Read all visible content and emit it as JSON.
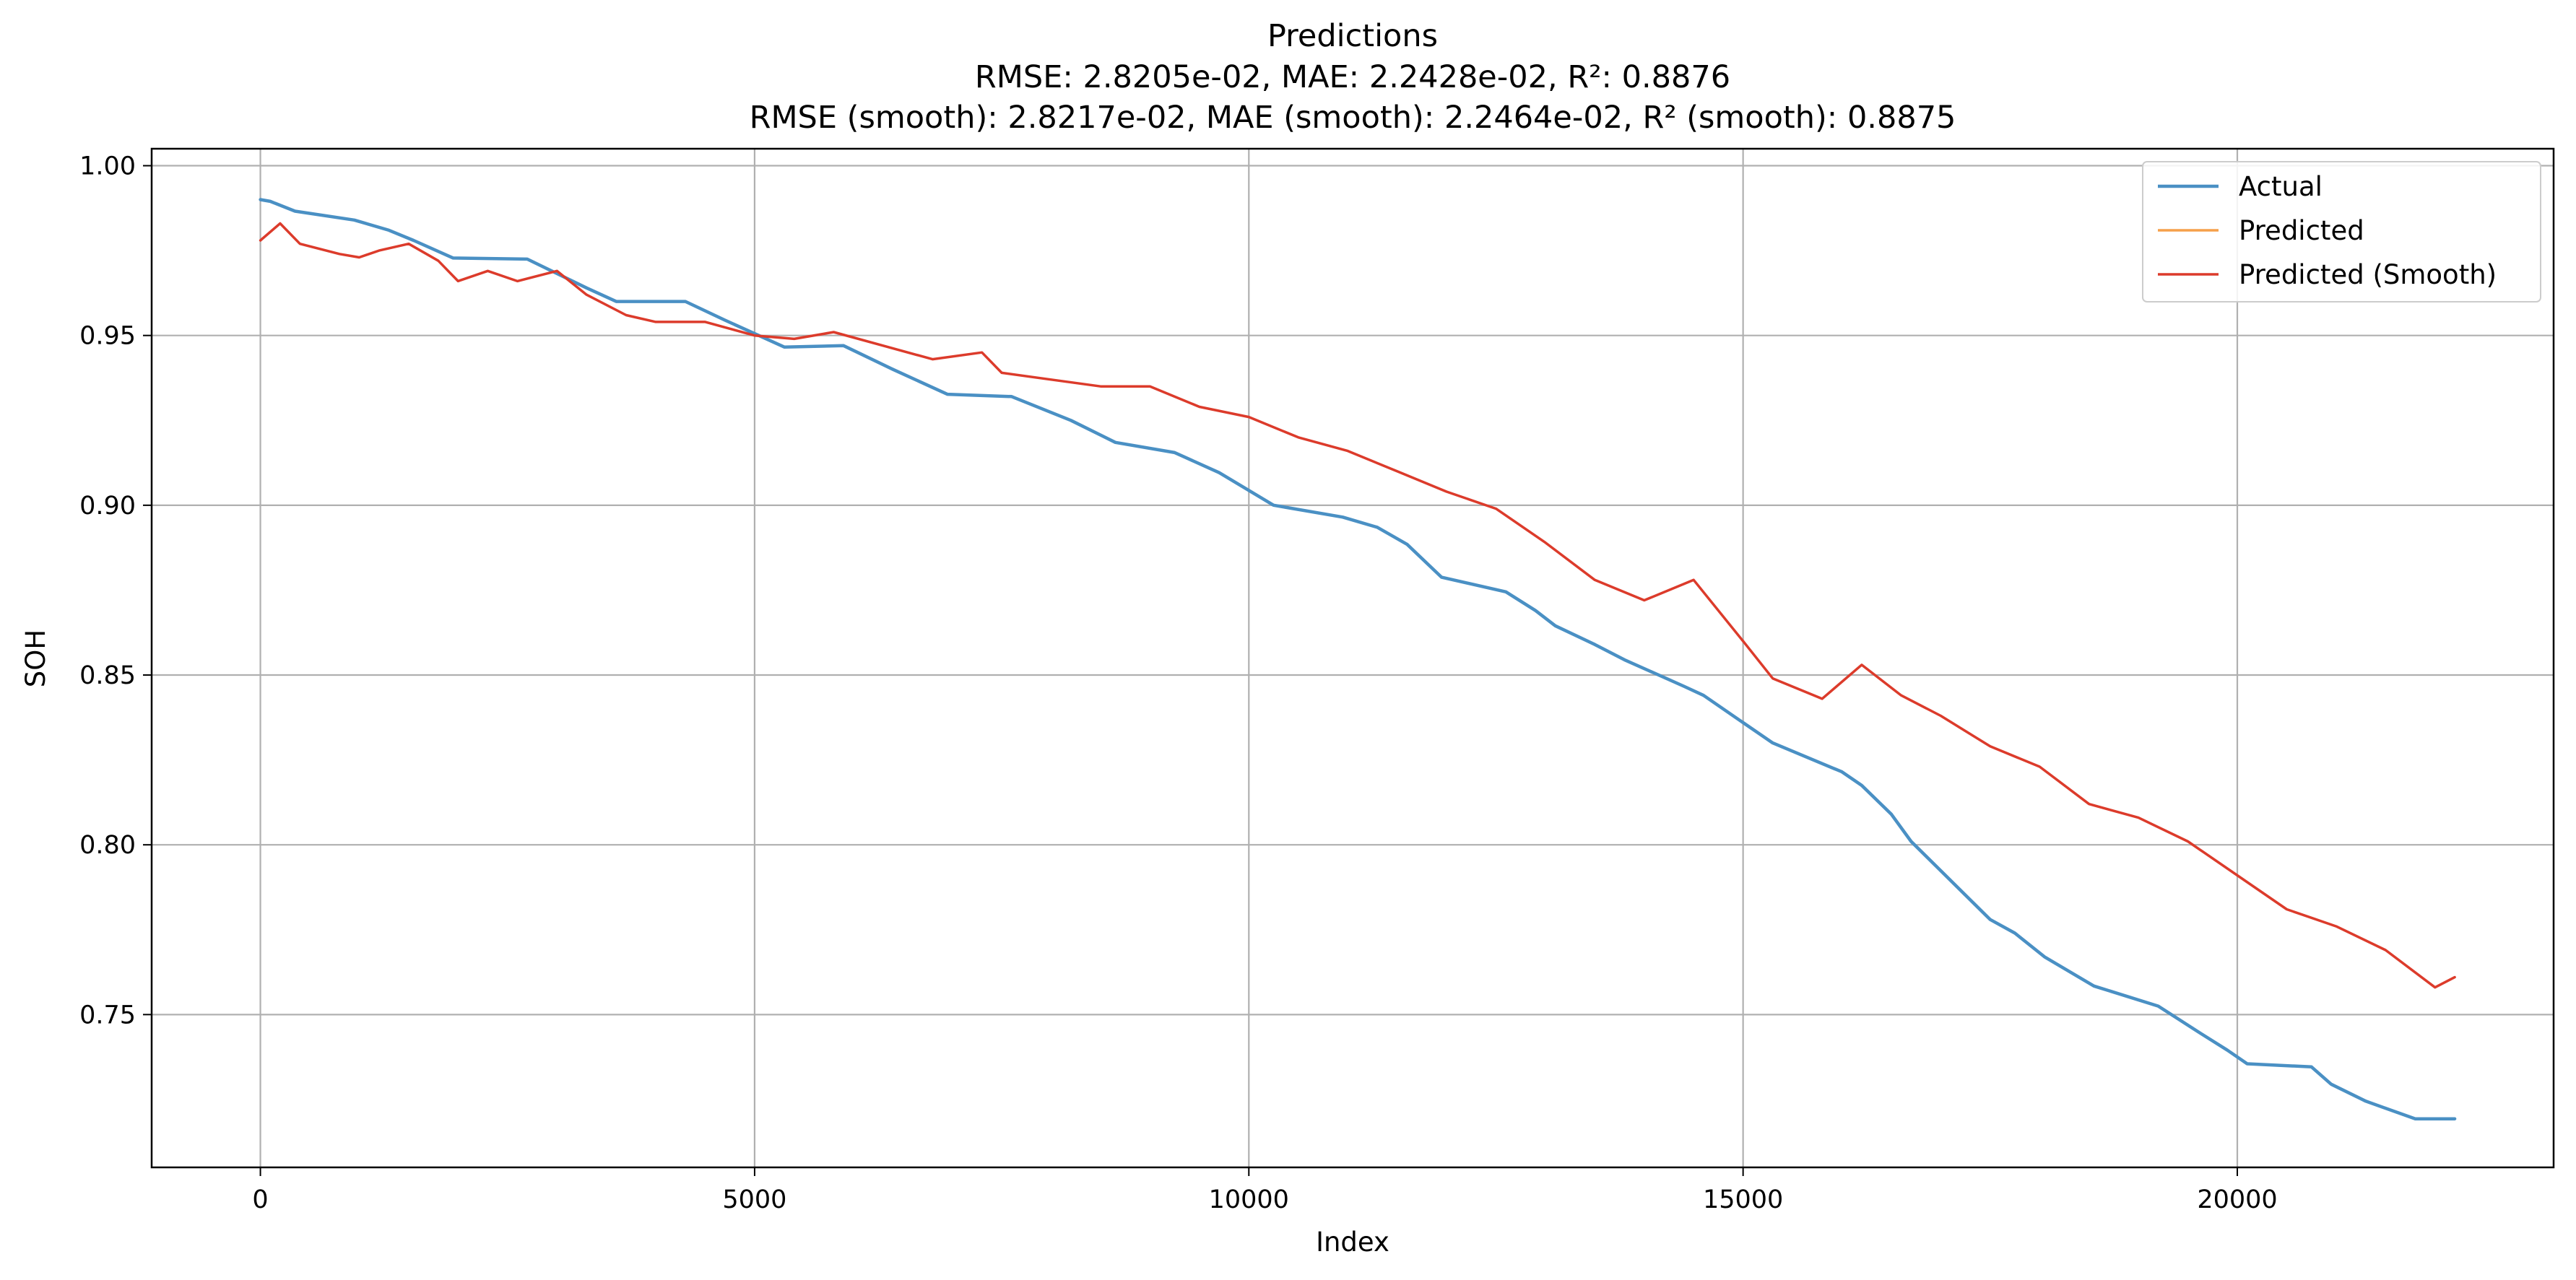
{
  "chart_data": {
    "type": "line",
    "title": "Predictions",
    "subtitle": [
      "RMSE: 2.8205e-02, MAE: 2.2428e-02, R²: 0.8876",
      "RMSE (smooth): 2.8217e-02, MAE (smooth): 2.2464e-02, R² (smooth): 0.8875"
    ],
    "xlabel": "Index",
    "ylabel": "SOH",
    "xlim": [
      -1100,
      23200
    ],
    "ylim": [
      0.705,
      1.005
    ],
    "xticks": [
      0,
      5000,
      10000,
      15000,
      20000
    ],
    "xtick_labels": [
      "0",
      "5000",
      "10000",
      "15000",
      "20000"
    ],
    "yticks": [
      0.75,
      0.8,
      0.85,
      0.9,
      0.95,
      1.0
    ],
    "ytick_labels": [
      "0.75",
      "0.80",
      "0.85",
      "0.90",
      "0.95",
      "1.00"
    ],
    "grid": true,
    "legend_position": "top-right",
    "series": [
      {
        "name": "Actual",
        "color": "#4a90c4",
        "x": [
          0,
          100,
          350,
          950,
          1300,
          1550,
          1950,
          2700,
          3300,
          3600,
          4300,
          4700,
          5300,
          5900,
          6400,
          6950,
          7600,
          8200,
          8650,
          9250,
          9700,
          10250,
          10950,
          11300,
          11600,
          11950,
          12600,
          12900,
          13100,
          13500,
          13800,
          14400,
          14600,
          15000,
          15300,
          16000,
          16200,
          16500,
          16700,
          17500,
          17750,
          18050,
          18550,
          19200,
          19600,
          19900,
          20100,
          20750,
          20950,
          21300,
          21800,
          22200
        ],
        "values": [
          0.99,
          0.9895,
          0.9866,
          0.984,
          0.981,
          0.978,
          0.9728,
          0.9725,
          0.964,
          0.96,
          0.96,
          0.9545,
          0.9466,
          0.947,
          0.94,
          0.9327,
          0.932,
          0.925,
          0.9185,
          0.9155,
          0.9096,
          0.9,
          0.8965,
          0.8935,
          0.8885,
          0.8788,
          0.8745,
          0.869,
          0.8645,
          0.859,
          0.8545,
          0.8467,
          0.844,
          0.836,
          0.83,
          0.8215,
          0.8175,
          0.809,
          0.801,
          0.778,
          0.774,
          0.767,
          0.7584,
          0.7525,
          0.745,
          0.7395,
          0.7355,
          0.7346,
          0.7295,
          0.7245,
          0.7193,
          0.7193
        ]
      },
      {
        "name": "Predicted",
        "color": "#f5a04a",
        "x": [],
        "values": []
      },
      {
        "name": "Predicted (Smooth)",
        "color": "#dc3b2b",
        "x": [
          0,
          200,
          400,
          800,
          1000,
          1200,
          1500,
          1800,
          2000,
          2300,
          2600,
          3000,
          3300,
          3700,
          4000,
          4500,
          5000,
          5400,
          5800,
          6300,
          6800,
          7300,
          7500,
          8000,
          8500,
          9000,
          9500,
          10000,
          10500,
          11000,
          11500,
          12000,
          12500,
          13000,
          13500,
          14000,
          14500,
          15000,
          15300,
          15800,
          16200,
          16600,
          17000,
          17500,
          18000,
          18500,
          19000,
          19500,
          20000,
          20500,
          21000,
          21500,
          22000,
          22200
        ],
        "values": [
          0.978,
          0.983,
          0.977,
          0.974,
          0.973,
          0.975,
          0.977,
          0.972,
          0.966,
          0.969,
          0.966,
          0.969,
          0.962,
          0.956,
          0.954,
          0.954,
          0.95,
          0.949,
          0.951,
          0.947,
          0.943,
          0.945,
          0.939,
          0.937,
          0.935,
          0.935,
          0.929,
          0.926,
          0.92,
          0.916,
          0.91,
          0.904,
          0.899,
          0.889,
          0.878,
          0.872,
          0.878,
          0.86,
          0.849,
          0.843,
          0.853,
          0.844,
          0.838,
          0.829,
          0.823,
          0.812,
          0.808,
          0.801,
          0.791,
          0.781,
          0.776,
          0.769,
          0.758,
          0.761
        ]
      }
    ]
  }
}
